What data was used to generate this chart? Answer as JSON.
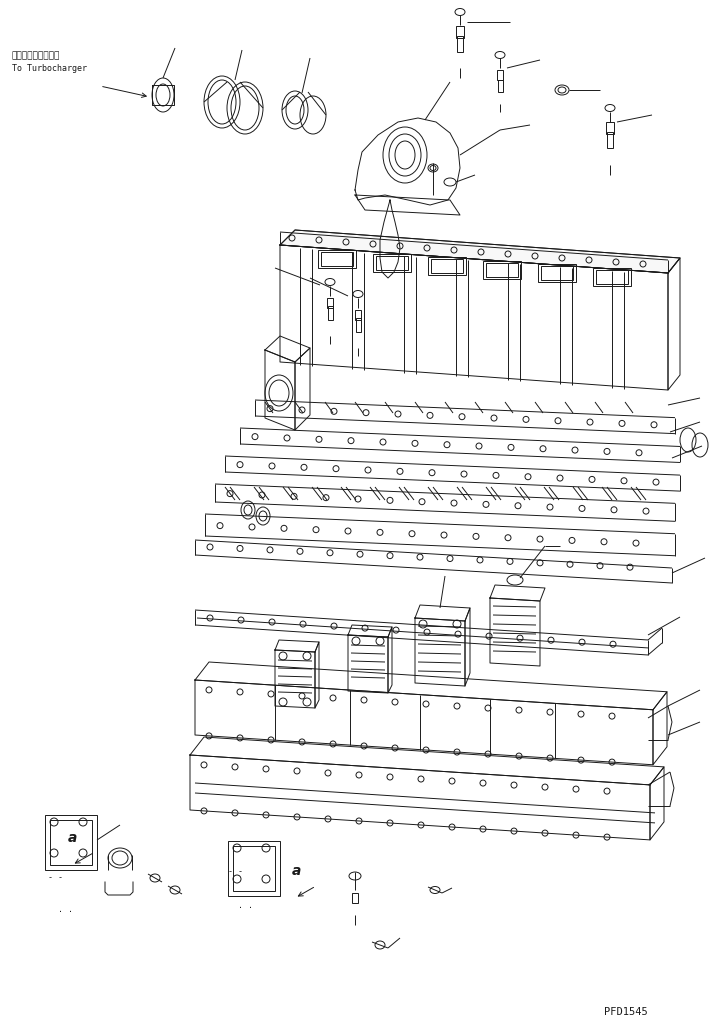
{
  "bg_color": "#ffffff",
  "line_color": "#1a1a1a",
  "watermark": "PFD1545",
  "label_turbo_jp": "ターボチャージャへ",
  "label_turbo_en": "To Turbocharger",
  "label_a1": "a",
  "label_a2": "a",
  "lw": 0.7,
  "fig_width": 7.11,
  "fig_height": 10.26,
  "dpi": 100
}
